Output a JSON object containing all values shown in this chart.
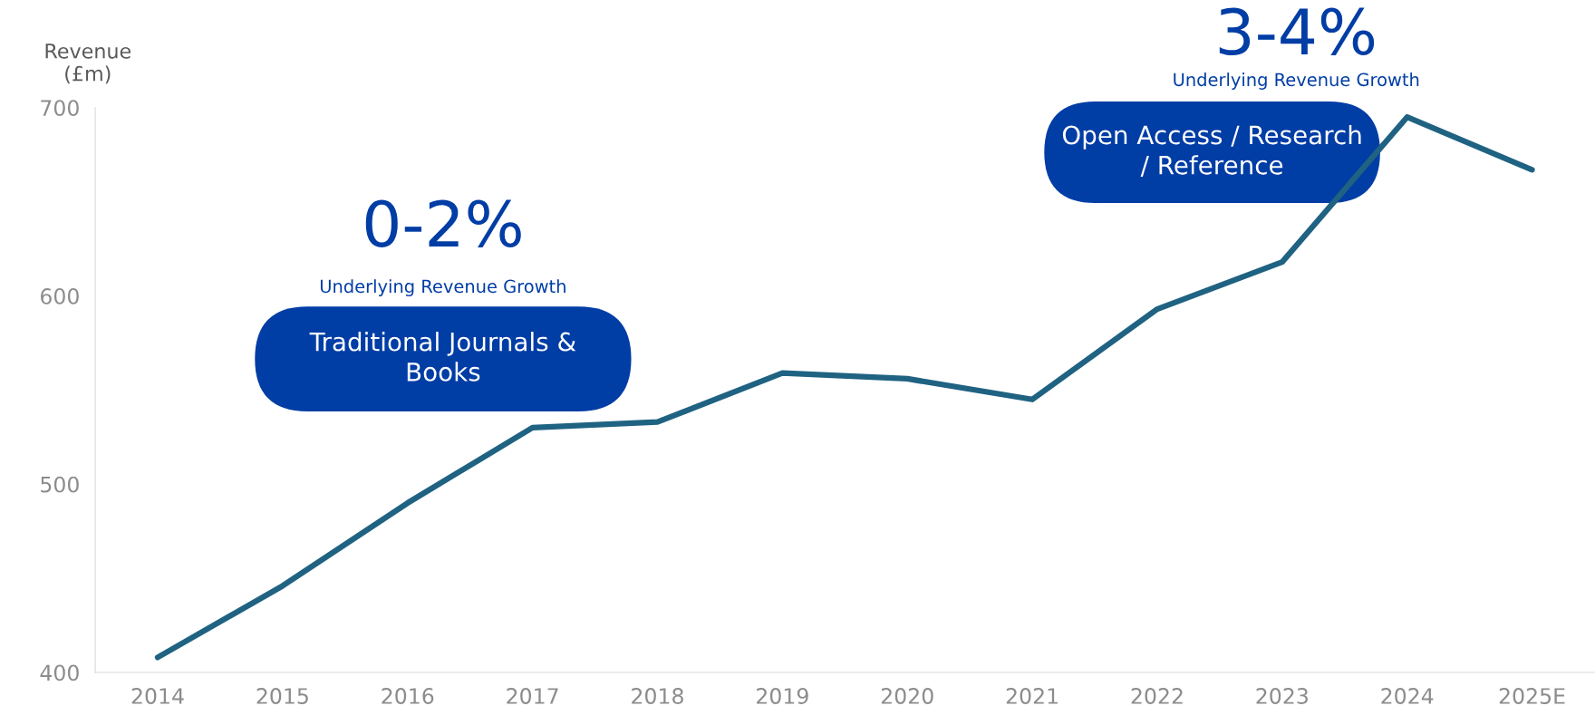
{
  "chart_data": {
    "type": "line",
    "ylabel": "Revenue\n(£m)",
    "categories": [
      "2014",
      "2015",
      "2016",
      "2017",
      "2018",
      "2019",
      "2020",
      "2021",
      "2022",
      "2023",
      "2024",
      "2025E"
    ],
    "series": [
      {
        "color": "#1f6282",
        "values": [
          408,
          446,
          490,
          530,
          533,
          559,
          556,
          545,
          593,
          618,
          695,
          667
        ]
      }
    ],
    "ylim": [
      400,
      700
    ],
    "yticks": [
      400,
      500,
      600,
      700
    ],
    "grid": false,
    "legend": false,
    "marker": "none",
    "line_style": "solid",
    "annotations": [
      "0-2%",
      "Underlying Revenue Growth",
      "Traditional Journals &\nBooks",
      "3-4%",
      "Underlying Revenue Growth",
      "Open Access / Research\n/ Reference"
    ]
  }
}
